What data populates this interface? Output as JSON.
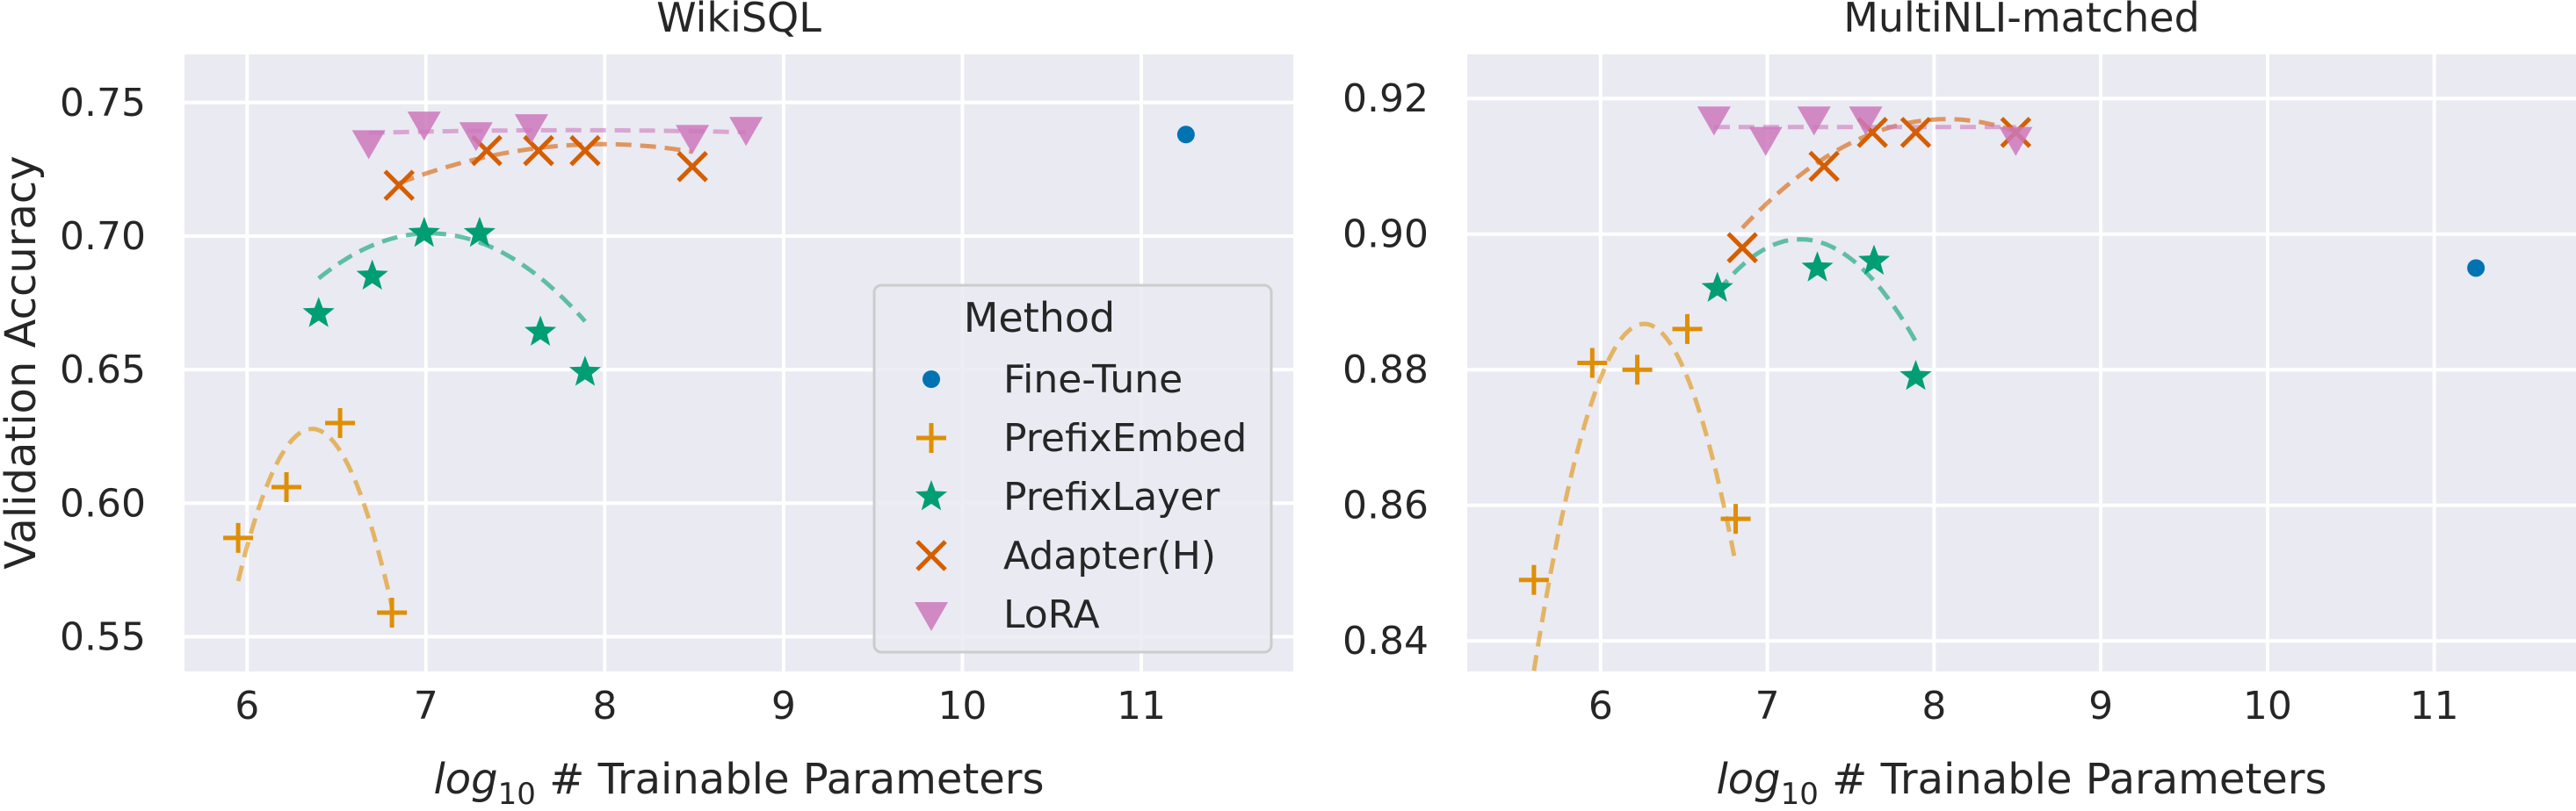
{
  "shared": {
    "ylabel": "Validation Accuracy",
    "xlabel_italic": "log",
    "xlabel_sub": "10",
    "xlabel_rest": " # Trainable Parameters"
  },
  "legend": {
    "title": "Method",
    "entries": [
      {
        "name": "Fine-Tune",
        "marker": "circle",
        "color": "#0173b2"
      },
      {
        "name": "PrefixEmbed",
        "marker": "plus",
        "color": "#de8f05"
      },
      {
        "name": "PrefixLayer",
        "marker": "star",
        "color": "#029e73"
      },
      {
        "name": "Adapter(H)",
        "marker": "x",
        "color": "#d55e00"
      },
      {
        "name": "LoRA",
        "marker": "triangle-down",
        "color": "#cc78bc"
      }
    ]
  },
  "chart_data": [
    {
      "type": "scatter",
      "title": "WikiSQL",
      "xlim": [
        5.65,
        11.85
      ],
      "ylim": [
        0.537,
        0.768
      ],
      "xticks": [
        6,
        7,
        8,
        9,
        10,
        11
      ],
      "yticks": [
        0.55,
        0.6,
        0.65,
        0.7,
        0.75
      ],
      "ytick_decimals": 2,
      "grid": true,
      "legend_position": "center-right",
      "series": [
        {
          "name": "Fine-Tune",
          "x": [
            11.25
          ],
          "y": [
            0.738
          ]
        },
        {
          "name": "PrefixEmbed",
          "x": [
            5.95,
            6.22,
            6.52,
            6.81
          ],
          "y": [
            0.587,
            0.606,
            0.63,
            0.559
          ]
        },
        {
          "name": "PrefixLayer",
          "x": [
            6.4,
            6.7,
            6.99,
            7.3,
            7.64,
            7.89
          ],
          "y": [
            0.671,
            0.685,
            0.701,
            0.701,
            0.664,
            0.649
          ]
        },
        {
          "name": "Adapter(H)",
          "x": [
            6.85,
            7.34,
            7.63,
            7.89,
            8.49
          ],
          "y": [
            0.719,
            0.732,
            0.732,
            0.732,
            0.726
          ]
        },
        {
          "name": "LoRA",
          "x": [
            6.68,
            6.99,
            7.28,
            7.59,
            8.49,
            8.79
          ],
          "y": [
            0.735,
            0.742,
            0.738,
            0.741,
            0.737,
            0.74
          ]
        }
      ],
      "trend_lines": [
        {
          "name": "PrefixEmbed",
          "x": [
            5.95,
            6.81
          ],
          "coef": [
            -0.3335,
            4.2443,
            -12.876
          ]
        },
        {
          "name": "PrefixLayer",
          "x": [
            6.4,
            7.89
          ],
          "coef": [
            -0.0437,
            0.6137,
            -1.4536
          ]
        },
        {
          "name": "Adapter(H)",
          "x": [
            6.85,
            8.49
          ],
          "coef": [
            -0.0113,
            0.1805,
            0.0136
          ]
        },
        {
          "name": "LoRA",
          "x": [
            6.68,
            8.79
          ],
          "coef": [
            -0.0008,
            0.0125,
            0.6908
          ]
        }
      ]
    },
    {
      "type": "scatter",
      "title": "MultiNLI-matched",
      "xlim": [
        5.2,
        11.85
      ],
      "ylim": [
        0.8355,
        0.9265
      ],
      "xticks": [
        6,
        7,
        8,
        9,
        10,
        11
      ],
      "yticks": [
        0.84,
        0.86,
        0.88,
        0.9,
        0.92
      ],
      "ytick_decimals": 2,
      "grid": true,
      "series": [
        {
          "name": "Fine-Tune",
          "x": [
            11.25
          ],
          "y": [
            0.895
          ]
        },
        {
          "name": "PrefixEmbed",
          "x": [
            5.6,
            5.95,
            6.22,
            6.52,
            6.81
          ],
          "y": [
            0.849,
            0.881,
            0.88,
            0.886,
            0.858
          ]
        },
        {
          "name": "PrefixLayer",
          "x": [
            6.7,
            7.3,
            7.64,
            7.89
          ],
          "y": [
            0.892,
            0.895,
            0.896,
            0.879
          ]
        },
        {
          "name": "Adapter(H)",
          "x": [
            6.85,
            7.34,
            7.63,
            7.89,
            8.49
          ],
          "y": [
            0.898,
            0.91,
            0.915,
            0.915,
            0.915
          ]
        },
        {
          "name": "LoRA",
          "x": [
            6.68,
            6.99,
            7.28,
            7.59,
            8.49
          ],
          "y": [
            0.917,
            0.914,
            0.917,
            0.917,
            0.914
          ]
        }
      ],
      "trend_lines": [
        {
          "name": "PrefixEmbed",
          "x": [
            5.6,
            6.81
          ],
          "coef": [
            -0.1172,
            1.4675,
            -3.707
          ]
        },
        {
          "name": "PrefixLayer",
          "x": [
            6.7,
            7.89
          ],
          "coef": [
            -0.0315,
            0.4535,
            -0.733
          ]
        },
        {
          "name": "Adapter(H)",
          "x": [
            6.85,
            8.49
          ],
          "coef": [
            -0.0107,
            0.1728,
            0.2193
          ]
        },
        {
          "name": "LoRA",
          "x": [
            6.68,
            8.49
          ],
          "coef": [
            0.0,
            0.0,
            0.9158
          ]
        }
      ]
    }
  ]
}
